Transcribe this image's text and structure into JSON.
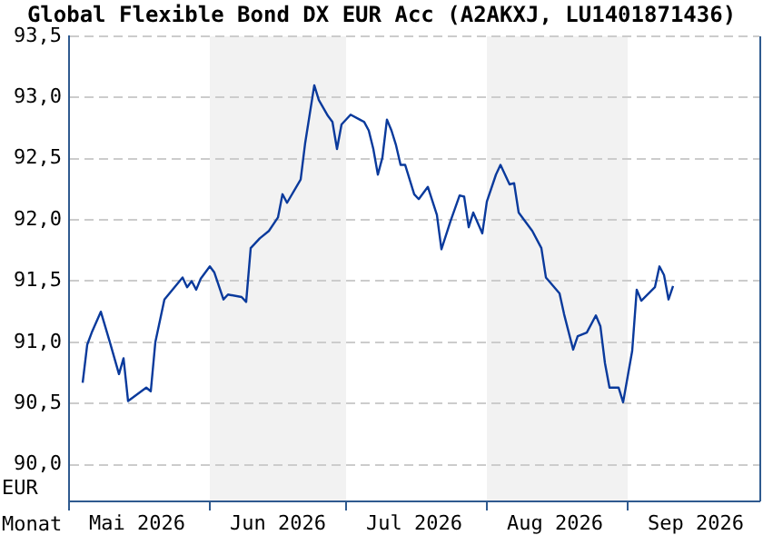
{
  "chart_data": {
    "type": "line",
    "title": "Global Flexible Bond DX EUR Acc (A2AKXJ, LU1401871436)",
    "xlabel": "Monat",
    "ylabel": "EUR",
    "x": [
      "2026-05-04",
      "2026-05-05",
      "2026-05-06",
      "2026-05-08",
      "2026-05-10",
      "2026-05-12",
      "2026-05-13",
      "2026-05-14",
      "2026-05-18",
      "2026-05-19",
      "2026-05-20",
      "2026-05-22",
      "2026-05-26",
      "2026-05-27",
      "2026-05-28",
      "2026-05-29",
      "2026-05-30",
      "2026-06-01",
      "2026-06-02",
      "2026-06-04",
      "2026-06-05",
      "2026-06-08",
      "2026-06-09",
      "2026-06-10",
      "2026-06-12",
      "2026-06-14",
      "2026-06-16",
      "2026-06-17",
      "2026-06-18",
      "2026-06-21",
      "2026-06-22",
      "2026-06-24",
      "2026-06-25",
      "2026-06-27",
      "2026-06-28",
      "2026-06-29",
      "2026-06-30",
      "2026-07-02",
      "2026-07-04",
      "2026-07-05",
      "2026-07-06",
      "2026-07-07",
      "2026-07-08",
      "2026-07-09",
      "2026-07-10",
      "2026-07-11",
      "2026-07-12",
      "2026-07-13",
      "2026-07-14",
      "2026-07-16",
      "2026-07-17",
      "2026-07-19",
      "2026-07-21",
      "2026-07-22",
      "2026-07-24",
      "2026-07-26",
      "2026-07-27",
      "2026-07-28",
      "2026-07-29",
      "2026-07-31",
      "2026-08-01",
      "2026-08-03",
      "2026-08-04",
      "2026-08-06",
      "2026-08-07",
      "2026-08-08",
      "2026-08-10",
      "2026-08-11",
      "2026-08-13",
      "2026-08-14",
      "2026-08-17",
      "2026-08-18",
      "2026-08-20",
      "2026-08-21",
      "2026-08-23",
      "2026-08-25",
      "2026-08-26",
      "2026-08-27",
      "2026-08-28",
      "2026-08-30",
      "2026-08-31",
      "2026-09-02",
      "2026-09-03",
      "2026-09-04",
      "2026-09-07",
      "2026-09-08",
      "2026-09-09",
      "2026-09-10",
      "2026-09-11"
    ],
    "series": [
      {
        "color": "#0a3a9c",
        "values": [
          90.67,
          90.98,
          91.08,
          91.25,
          91.0,
          90.74,
          90.87,
          90.52,
          90.63,
          90.6,
          91.0,
          91.35,
          91.53,
          91.45,
          91.5,
          91.43,
          91.52,
          91.62,
          91.57,
          91.35,
          91.39,
          91.37,
          91.33,
          91.77,
          91.85,
          91.91,
          92.02,
          92.21,
          92.14,
          92.33,
          92.63,
          93.1,
          92.98,
          92.85,
          92.8,
          92.58,
          92.78,
          92.86,
          92.82,
          92.8,
          92.73,
          92.58,
          92.37,
          92.51,
          92.82,
          92.73,
          92.61,
          92.45,
          92.45,
          92.21,
          92.17,
          92.27,
          92.04,
          91.76,
          91.99,
          92.2,
          92.19,
          91.94,
          92.06,
          91.89,
          92.15,
          92.37,
          92.45,
          92.29,
          92.3,
          92.06,
          91.96,
          91.91,
          91.77,
          91.53,
          91.4,
          91.23,
          90.94,
          91.05,
          91.08,
          91.22,
          91.13,
          90.83,
          90.63,
          90.63,
          90.51,
          90.93,
          91.43,
          91.34,
          91.45,
          91.62,
          91.55,
          91.35,
          91.46
        ]
      }
    ],
    "xlim": [
      "2026-05-01",
      "2026-09-30"
    ],
    "xticks": [
      {
        "value": "2026-05-01",
        "label": null
      },
      {
        "value": "2026-05-16",
        "label": "Mai 2026"
      },
      {
        "value": "2026-06-01",
        "label": null
      },
      {
        "value": "2026-06-16",
        "label": "Jun 2026"
      },
      {
        "value": "2026-07-01",
        "label": null
      },
      {
        "value": "2026-07-16",
        "label": "Jul 2026"
      },
      {
        "value": "2026-08-01",
        "label": null
      },
      {
        "value": "2026-08-16",
        "label": "Aug 2026"
      },
      {
        "value": "2026-09-01",
        "label": null
      },
      {
        "value": "2026-09-16",
        "label": "Sep 2026"
      }
    ],
    "ylim": [
      89.7,
      93.5
    ],
    "yticks": [
      {
        "value": 90,
        "label": "90,0"
      },
      {
        "value": 90.5,
        "label": "90,5"
      },
      {
        "value": 91,
        "label": "91,0"
      },
      {
        "value": 91.5,
        "label": "91,5"
      },
      {
        "value": 92,
        "label": "92,0"
      },
      {
        "value": 92.5,
        "label": "92,5"
      },
      {
        "value": 93,
        "label": "93,0"
      },
      {
        "value": 93.5,
        "label": "93,5"
      }
    ],
    "grid": "y",
    "bands": [
      {
        "axis": "x",
        "from": "2026-06-01",
        "to": "2026-07-01",
        "color": "#f2f2f2"
      },
      {
        "axis": "x",
        "from": "2026-08-01",
        "to": "2026-09-01",
        "color": "#f2f2f2"
      }
    ]
  }
}
